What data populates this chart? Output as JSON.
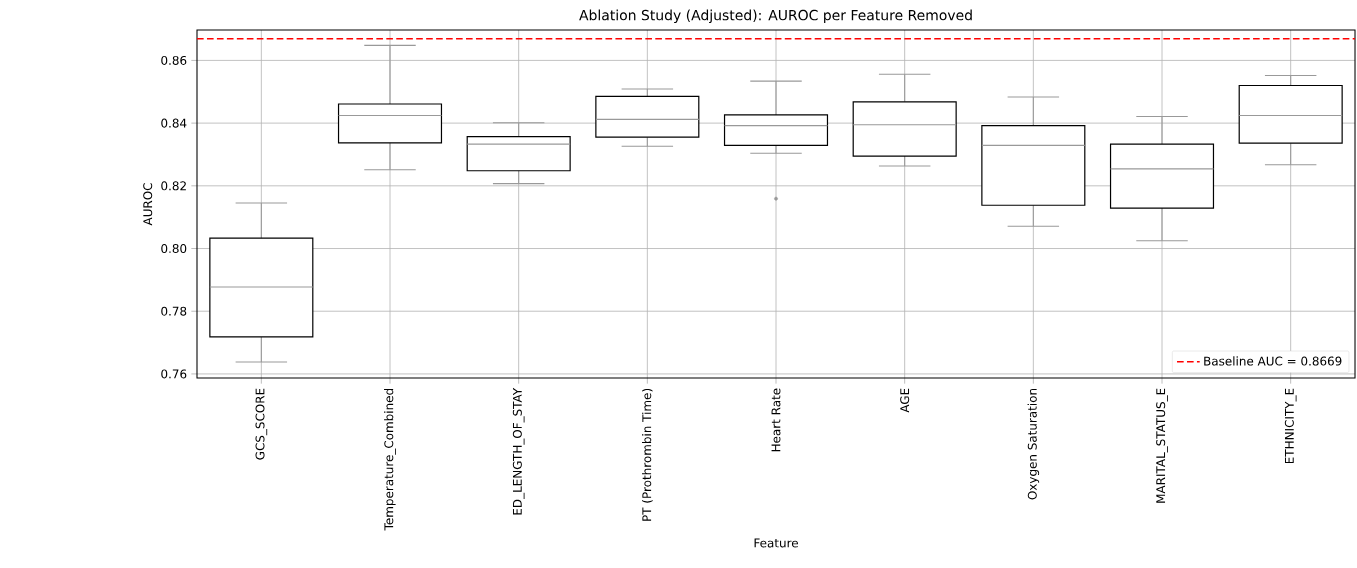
{
  "chart_data": {
    "type": "box",
    "title": "Ablation Study (Adjusted): AUROC per Feature Removed",
    "xlabel": "Feature",
    "ylabel": "AUROC",
    "categories": [
      "GCS_SCORE",
      "Temperature_Combined",
      "ED_LENGTH_OF_STAY",
      "PT (Prothrombin Time)",
      "Heart Rate",
      "AGE",
      "Oxygen Saturation",
      "MARITAL_STATUS_E",
      "ETHNICITY_E"
    ],
    "color": "#000000",
    "boxes": [
      {
        "low": 0.7638,
        "q1": 0.7718,
        "median": 0.7877,
        "q3": 0.8033,
        "high": 0.8145
      },
      {
        "low": 0.8251,
        "q1": 0.8337,
        "median": 0.8424,
        "q3": 0.8461,
        "high": 0.8648
      },
      {
        "low": 0.8207,
        "q1": 0.8248,
        "median": 0.8333,
        "q3": 0.8357,
        "high": 0.8401
      },
      {
        "low": 0.8326,
        "q1": 0.8355,
        "median": 0.8412,
        "q3": 0.8485,
        "high": 0.8509
      },
      {
        "low": 0.8304,
        "q1": 0.8329,
        "median": 0.8392,
        "q3": 0.8426,
        "high": 0.8534,
        "outliers": [
          0.8159
        ]
      },
      {
        "low": 0.8263,
        "q1": 0.8295,
        "median": 0.8395,
        "q3": 0.8468,
        "high": 0.8556
      },
      {
        "low": 0.8071,
        "q1": 0.8138,
        "median": 0.8329,
        "q3": 0.8392,
        "high": 0.8483
      },
      {
        "low": 0.8025,
        "q1": 0.8129,
        "median": 0.8254,
        "q3": 0.8333,
        "high": 0.8421
      },
      {
        "low": 0.8267,
        "q1": 0.8336,
        "median": 0.8424,
        "q3": 0.852,
        "high": 0.8552
      }
    ],
    "ylim": [
      0.7587,
      0.8697
    ],
    "yticks": [
      {
        "value": 0.76,
        "label": "0.76"
      },
      {
        "value": 0.78,
        "label": "0.78"
      },
      {
        "value": 0.8,
        "label": "0.80"
      },
      {
        "value": 0.82,
        "label": "0.82"
      },
      {
        "value": 0.84,
        "label": "0.84"
      },
      {
        "value": 0.86,
        "label": "0.86"
      }
    ],
    "ref_lines": [
      {
        "axis": "y",
        "value": 0.8669,
        "label": "Baseline AUC = 0.8669",
        "color": "#ff0000",
        "line_style": "dashed"
      }
    ],
    "grid": true,
    "legend": "bottom right"
  }
}
